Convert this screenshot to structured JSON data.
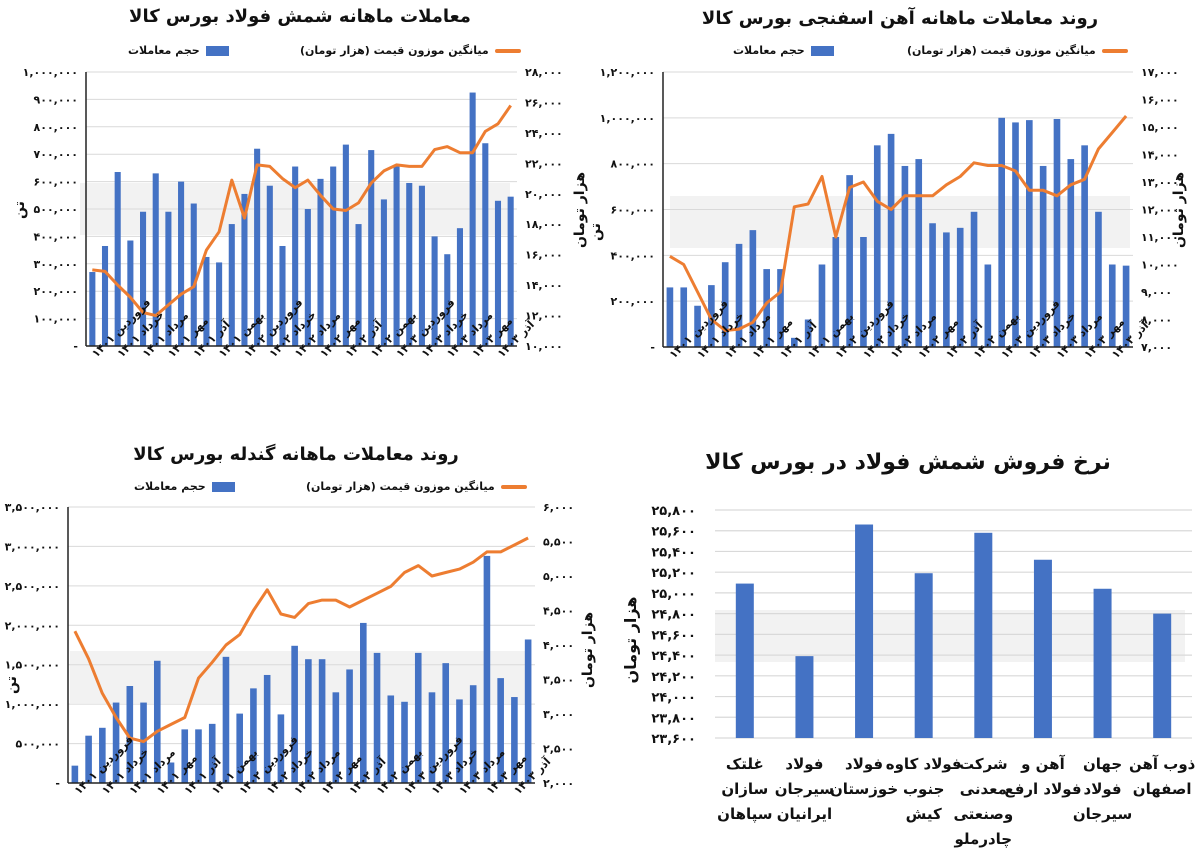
{
  "colors": {
    "bar": "#4472C4",
    "line": "#ED7D31",
    "grid": "#d9d9d9",
    "axis": "#222222"
  },
  "chart_data": [
    {
      "type": "bar+line",
      "title": "معاملات ماهانه شمش فولاد بورس کالا",
      "legend": {
        "bar": "حجم معاملات",
        "line": "میانگین موزون قیمت (هزار تومان)",
        "placement": "top"
      },
      "ylabel_left": "تن",
      "ylabel_right": "هزار تومان",
      "ylim_left": [
        0,
        1000000
      ],
      "ylim_right": [
        10000,
        28000
      ],
      "left_ticks": [
        "-",
        "۱۰۰,۰۰۰",
        "۲۰۰,۰۰۰",
        "۳۰۰,۰۰۰",
        "۴۰۰,۰۰۰",
        "۵۰۰,۰۰۰",
        "۶۰۰,۰۰۰",
        "۷۰۰,۰۰۰",
        "۸۰۰,۰۰۰",
        "۹۰۰,۰۰۰",
        "۱,۰۰۰,۰۰۰"
      ],
      "right_ticks": [
        "۱۰,۰۰۰",
        "۱۲,۰۰۰",
        "۱۴,۰۰۰",
        "۱۶,۰۰۰",
        "۱۸,۰۰۰",
        "۲۰,۰۰۰",
        "۲۲,۰۰۰",
        "۲۴,۰۰۰",
        "۲۶,۰۰۰",
        "۲۸,۰۰۰"
      ],
      "x_tick_labels": [
        "فروردین ۱۴۰۱",
        "خرداد ۱۴۰۱",
        "مرداد ۱۴۰۱",
        "مهر ۱۴۰۱",
        "آذر ۱۴۰۱",
        "بهمن ۱۴۰۱",
        "فروردین ۱۴۰۲",
        "خرداد ۱۴۰۲",
        "مرداد ۱۴۰۲",
        "مهر ۱۴۰۲",
        "آذر ۱۴۰۲",
        "بهمن ۱۴۰۲",
        "فروردین ۱۴۰۳",
        "خرداد ۱۴۰۳",
        "مرداد ۱۴۰۳",
        "مهر ۱۴۰۳",
        "آذر ۱۴۰۳"
      ],
      "bar_values": [
        270000,
        365000,
        635000,
        385000,
        490000,
        630000,
        490000,
        600000,
        520000,
        325000,
        305000,
        445000,
        555000,
        720000,
        585000,
        365000,
        655000,
        500000,
        610000,
        655000,
        735000,
        445000,
        715000,
        535000,
        655000,
        595000,
        585000,
        400000,
        335000,
        430000,
        925000,
        740000,
        530000,
        545000
      ],
      "line_values": [
        15000,
        14900,
        14000,
        13200,
        12200,
        12000,
        12700,
        13400,
        13900,
        16300,
        17500,
        20900,
        18400,
        21900,
        21800,
        21000,
        20400,
        20900,
        19900,
        19000,
        18900,
        19400,
        20700,
        21500,
        21900,
        21800,
        21800,
        22900,
        23100,
        22700,
        22700,
        24100,
        24600,
        25800
      ],
      "grid": true
    },
    {
      "type": "bar+line",
      "title": "روند معاملات ماهانه آهن اسفنجی بورس کالا",
      "legend": {
        "bar": "حجم معاملات",
        "line": "میانگین موزون قیمت (هزار تومان)",
        "placement": "top"
      },
      "ylabel_left": "تن",
      "ylabel_right": "هزار تومان",
      "ylim_left": [
        0,
        1200000
      ],
      "ylim_right": [
        7000,
        17000
      ],
      "left_ticks": [
        "-",
        "۲۰۰,۰۰۰",
        "۴۰۰,۰۰۰",
        "۶۰۰,۰۰۰",
        "۸۰۰,۰۰۰",
        "۱,۰۰۰,۰۰۰",
        "۱,۲۰۰,۰۰۰"
      ],
      "right_ticks": [
        "۷,۰۰۰",
        "۸,۰۰۰",
        "۹,۰۰۰",
        "۱۰,۰۰۰",
        "۱۱,۰۰۰",
        "۱۲,۰۰۰",
        "۱۳,۰۰۰",
        "۱۴,۰۰۰",
        "۱۵,۰۰۰",
        "۱۶,۰۰۰",
        "۱۷,۰۰۰"
      ],
      "x_tick_labels": [
        "فروردین ۱۴۰۱",
        "خرداد ۱۴۰۱",
        "مرداد ۱۴۰۱",
        "مهر ۱۴۰۱",
        "آذر ۱۴۰۱",
        "بهمن ۱۴۰۱",
        "فروردین ۱۴۰۲",
        "خرداد ۱۴۰۲",
        "مرداد ۱۴۰۲",
        "مهر ۱۴۰۲",
        "آذر ۱۴۰۲",
        "بهمن ۱۴۰۲",
        "فروردین ۱۴۰۳",
        "خرداد ۱۴۰۳",
        "مرداد ۱۴۰۳",
        "مهر ۱۴۰۳",
        "آذر ۱۴۰۳"
      ],
      "bar_values": [
        260000,
        260000,
        180000,
        270000,
        370000,
        450000,
        510000,
        340000,
        340000,
        40000,
        120000,
        360000,
        480000,
        750000,
        480000,
        880000,
        930000,
        790000,
        820000,
        540000,
        500000,
        520000,
        590000,
        360000,
        1000000,
        980000,
        990000,
        790000,
        995000,
        820000,
        880000,
        590000,
        360000,
        355000
      ],
      "line_values": [
        10300,
        10000,
        9000,
        8000,
        7600,
        7650,
        7900,
        8600,
        9000,
        12100,
        12200,
        13200,
        11000,
        12800,
        13000,
        12300,
        12000,
        12500,
        12500,
        12500,
        12900,
        13200,
        13700,
        13600,
        13600,
        13400,
        12700,
        12700,
        12500,
        12900,
        13100,
        14200,
        14800,
        15400
      ],
      "grid": true
    },
    {
      "type": "bar+line",
      "title": "روند معاملات ماهانه گندله بورس کالا",
      "legend": {
        "bar": "حجم معاملات",
        "line": "میانگین موزون قیمت (هزار تومان)",
        "placement": "top"
      },
      "ylabel_left": "تن",
      "ylabel_right": "هزار تومان",
      "ylim_left": [
        0,
        3500000
      ],
      "ylim_right": [
        2000,
        6000
      ],
      "left_ticks": [
        "-",
        "۵۰۰,۰۰۰",
        "۱,۰۰۰,۰۰۰",
        "۱,۵۰۰,۰۰۰",
        "۲,۰۰۰,۰۰۰",
        "۲,۵۰۰,۰۰۰",
        "۳,۰۰۰,۰۰۰",
        "۳,۵۰۰,۰۰۰"
      ],
      "right_ticks": [
        "۲,۰۰۰",
        "۲,۵۰۰",
        "۳,۰۰۰",
        "۳,۵۰۰",
        "۴,۰۰۰",
        "۴,۵۰۰",
        "۵,۰۰۰",
        "۵,۵۰۰",
        "۶,۰۰۰"
      ],
      "x_tick_labels": [
        "فروردین ۱۴۰۱",
        "خرداد ۱۴۰۱",
        "مرداد ۱۴۰۱",
        "مهر ۱۴۰۱",
        "آذر ۱۴۰۱",
        "بهمن ۱۴۰۱",
        "فروردین ۱۴۰۲",
        "خرداد ۱۴۰۲",
        "مرداد ۱۴۰۲",
        "مهر ۱۴۰۲",
        "آذر ۱۴۰۲",
        "بهمن ۱۴۰۲",
        "فروردین ۱۴۰۳",
        "خرداد ۱۴۰۳",
        "مرداد ۱۴۰۳",
        "مهر ۱۴۰۳",
        "آذر ۱۴۰۳"
      ],
      "bar_values": [
        220000,
        600000,
        700000,
        1020000,
        1230000,
        1020000,
        1550000,
        260000,
        680000,
        680000,
        750000,
        1600000,
        880000,
        1200000,
        1370000,
        870000,
        1740000,
        1570000,
        1570000,
        1150000,
        1440000,
        2030000,
        1650000,
        1110000,
        1030000,
        1650000,
        1150000,
        1520000,
        1060000,
        1240000,
        2880000,
        1330000,
        1090000,
        1820000
      ],
      "line_values": [
        4200,
        3800,
        3300,
        2950,
        2650,
        2600,
        2750,
        2850,
        2950,
        3520,
        3750,
        4000,
        4150,
        4500,
        4800,
        4450,
        4400,
        4600,
        4650,
        4650,
        4550,
        4650,
        4750,
        4850,
        5050,
        5150,
        5000,
        5050,
        5100,
        5200,
        5350,
        5350,
        5450,
        5550
      ],
      "grid": true
    },
    {
      "type": "bar",
      "title": "نرخ فروش شمش فولاد در بورس کالا",
      "ylabel": "هزار تومان",
      "ylim": [
        23600,
        25800
      ],
      "y_ticks": [
        "۲۳,۶۰۰",
        "۲۳,۸۰۰",
        "۲۴,۰۰۰",
        "۲۴,۲۰۰",
        "۲۴,۴۰۰",
        "۲۴,۶۰۰",
        "۲۴,۸۰۰",
        "۲۵,۰۰۰",
        "۲۵,۲۰۰",
        "۲۵,۴۰۰",
        "۲۵,۶۰۰",
        "۲۵,۸۰۰"
      ],
      "categories": [
        [
          "غلتک",
          "سازان",
          "سپاهان"
        ],
        [
          "فولاد",
          "سیرجان",
          "ایرانیان"
        ],
        [
          "فولاد",
          "خوزستان"
        ],
        [
          "فولاد کاوه",
          "جنوب",
          "کیش"
        ],
        [
          "شرکت",
          "معدنی",
          "وصنعتی",
          "چادرملو"
        ],
        [
          "آهن و",
          "فولاد ارفع"
        ],
        [
          "جهان",
          "فولاد",
          "سیرجان"
        ],
        [
          "ذوب آهن",
          "اصفهان"
        ]
      ],
      "values": [
        25090,
        24390,
        25660,
        25190,
        25580,
        25320,
        25040,
        24800
      ],
      "grid": true
    }
  ]
}
